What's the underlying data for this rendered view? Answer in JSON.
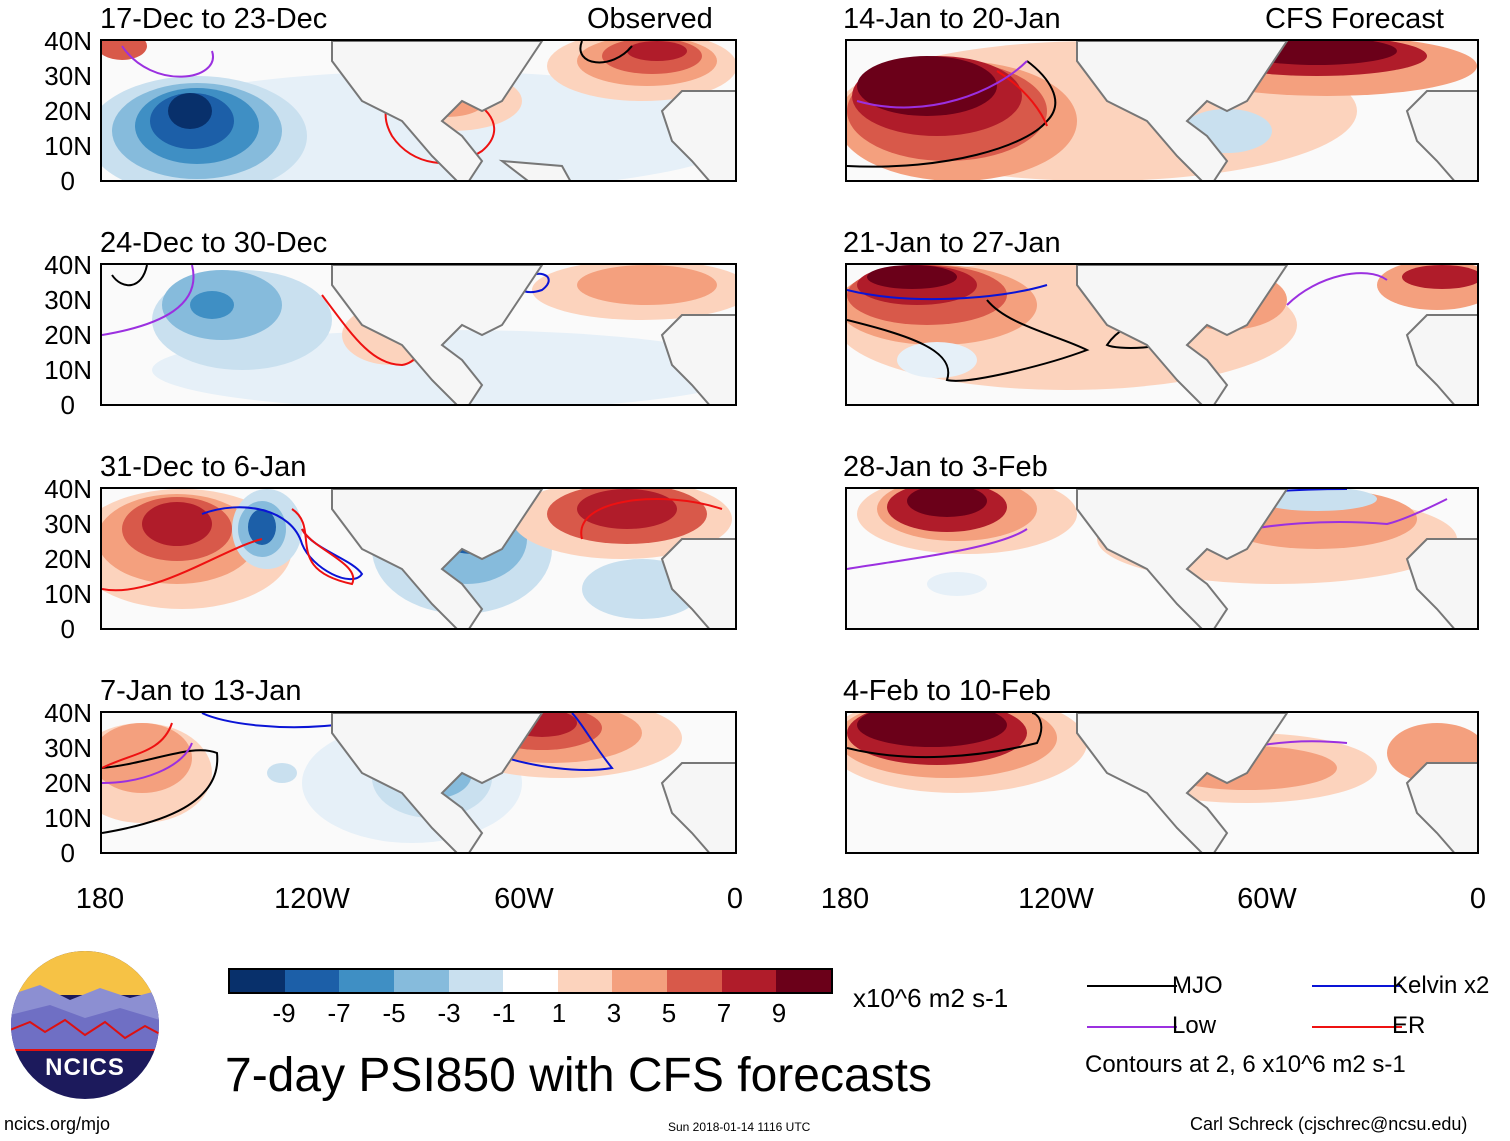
{
  "figure_title": "7-day PSI850 with CFS forecasts",
  "panels": [
    {
      "title": "17-Dec to 23-Dec",
      "tag": "Observed"
    },
    {
      "title": "14-Jan to 20-Jan",
      "tag": "CFS Forecast"
    },
    {
      "title": "24-Dec to 30-Dec",
      "tag": ""
    },
    {
      "title": "21-Jan to 27-Jan",
      "tag": ""
    },
    {
      "title": "31-Dec to 6-Jan",
      "tag": ""
    },
    {
      "title": "28-Jan to 3-Feb",
      "tag": ""
    },
    {
      "title": "7-Jan to 13-Jan",
      "tag": ""
    },
    {
      "title": "4-Feb to 10-Feb",
      "tag": ""
    }
  ],
  "y_ticks": [
    "40N",
    "30N",
    "20N",
    "10N",
    "0"
  ],
  "x_ticks": [
    "180",
    "120W",
    "60W",
    "0"
  ],
  "colorbar": {
    "labels": [
      "-9",
      "-7",
      "-5",
      "-3",
      "-1",
      "1",
      "3",
      "5",
      "7",
      "9"
    ],
    "colors": [
      "#08306b",
      "#1c5fa8",
      "#3f8fc4",
      "#86bbdc",
      "#c9e0ef",
      "#ffffff",
      "#fcd3bd",
      "#f4a07e",
      "#d8594a",
      "#b01c2a",
      "#6b0019"
    ],
    "units": "x10^6 m2 s-1"
  },
  "legend": {
    "mjo": {
      "label": "MJO",
      "color": "#000000"
    },
    "kelvin": {
      "label": "Kelvin x2",
      "color": "#0a14d6"
    },
    "low": {
      "label": "Low",
      "color": "#9b30e0"
    },
    "er": {
      "label": "ER",
      "color": "#ee1111"
    },
    "note": "Contours at 2, 6 x10^6 m2 s-1"
  },
  "logo": {
    "text": "NCICS"
  },
  "footer": {
    "site": "ncics.org/mjo",
    "timestamp": "Sun 2018-01-14 1116 UTC",
    "author": "Carl Schreck (cjschrec@ncsu.edu)"
  }
}
